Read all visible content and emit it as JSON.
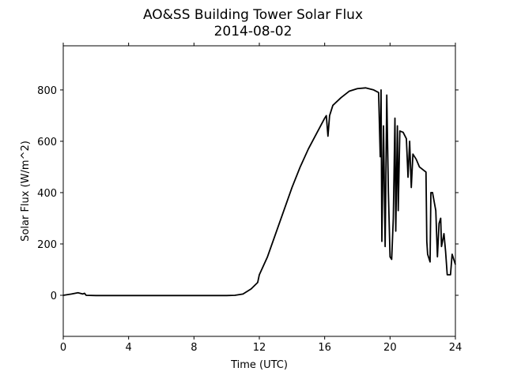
{
  "chart_data": {
    "type": "line",
    "title": "AO&SS Building Tower Solar Flux",
    "subtitle": "2014-08-02",
    "x_label": "Time (UTC)",
    "y_label": "Solar Flux (W/m^2)",
    "color": "#000000",
    "x": [
      0,
      0.5,
      0.9,
      1.2,
      1.3,
      1.4,
      2,
      4,
      6,
      8,
      10,
      10.5,
      11,
      11.5,
      11.9,
      12,
      12.5,
      13,
      13.5,
      14,
      14.5,
      15,
      15.5,
      16,
      16.1,
      16.2,
      16.3,
      16.5,
      17,
      17.5,
      18,
      18.5,
      19,
      19.3,
      19.4,
      19.45,
      19.5,
      19.6,
      19.7,
      19.8,
      19.9,
      20,
      20.1,
      20.2,
      20.3,
      20.35,
      20.45,
      20.5,
      20.6,
      20.8,
      21,
      21.1,
      21.2,
      21.3,
      21.4,
      21.6,
      21.8,
      22,
      22.2,
      22.25,
      22.3,
      22.4,
      22.45,
      22.5,
      22.6,
      22.8,
      22.9,
      23,
      23.1,
      23.15,
      23.3,
      23.4,
      23.5,
      23.7,
      23.8,
      24
    ],
    "values": [
      0,
      5,
      10,
      5,
      8,
      0,
      -1,
      -1,
      -1,
      -1,
      -1,
      0,
      5,
      25,
      50,
      80,
      150,
      240,
      330,
      420,
      500,
      570,
      630,
      690,
      700,
      620,
      700,
      740,
      770,
      795,
      805,
      808,
      800,
      790,
      540,
      800,
      210,
      660,
      190,
      780,
      400,
      150,
      140,
      300,
      690,
      250,
      660,
      330,
      640,
      635,
      610,
      460,
      600,
      420,
      550,
      530,
      500,
      490,
      480,
      210,
      160,
      140,
      130,
      400,
      400,
      330,
      150,
      280,
      300,
      190,
      240,
      170,
      80,
      80,
      160,
      120
    ],
    "xlim": [
      0,
      24
    ],
    "xticks": [
      0,
      4,
      8,
      12,
      16,
      20,
      24
    ],
    "ylim": [
      -160,
      972
    ],
    "yticks": [
      0,
      200,
      400,
      600,
      800
    ],
    "grid": false
  }
}
